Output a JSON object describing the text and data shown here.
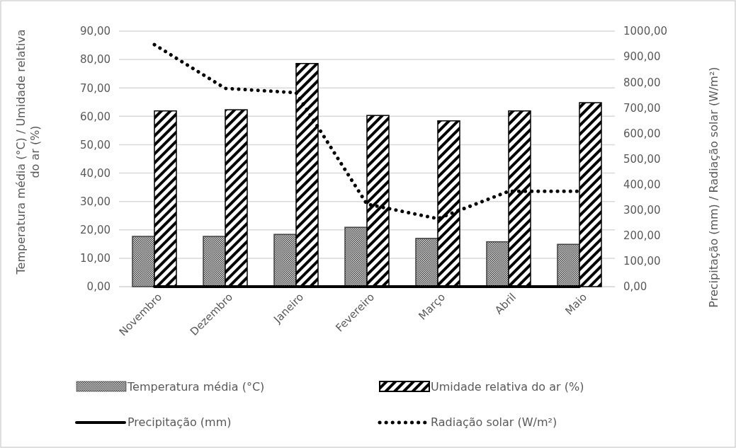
{
  "chart_data": {
    "type": "bar",
    "categories": [
      "Novembro",
      "Dezembro",
      "Janeiro",
      "Fevereiro",
      "Março",
      "Abril",
      "Maio"
    ],
    "ylabel": "Temperatura média (°C) / Umidade relativa do ar (%)",
    "y2label": "Precipitação (mm) / Radiação solar (W/m²)",
    "ylim": [
      0,
      90
    ],
    "yticks": [
      {
        "value": 0,
        "label": "0,00"
      },
      {
        "value": 10,
        "label": "10,00"
      },
      {
        "value": 20,
        "label": "20,00"
      },
      {
        "value": 30,
        "label": "30,00"
      },
      {
        "value": 40,
        "label": "40,00"
      },
      {
        "value": 50,
        "label": "50,00"
      },
      {
        "value": 60,
        "label": "60,00"
      },
      {
        "value": 70,
        "label": "70,00"
      },
      {
        "value": 80,
        "label": "80,00"
      },
      {
        "value": 90,
        "label": "90,00"
      }
    ],
    "y2lim": [
      0,
      1000
    ],
    "y2ticks": [
      {
        "value": 0,
        "label": "0,00"
      },
      {
        "value": 100,
        "label": "100,00"
      },
      {
        "value": 200,
        "label": "200,00"
      },
      {
        "value": 300,
        "label": "300,00"
      },
      {
        "value": 400,
        "label": "400,00"
      },
      {
        "value": 500,
        "label": "500,00"
      },
      {
        "value": 600,
        "label": "600,00"
      },
      {
        "value": 700,
        "label": "700,00"
      },
      {
        "value": 800,
        "label": "800,00"
      },
      {
        "value": 900,
        "label": "900,00"
      },
      {
        "value": 1000,
        "label": "1000,00"
      }
    ],
    "grid": "y",
    "legend": "bottom",
    "marker": "none",
    "series": [
      {
        "name": "Temperatura média (°C)",
        "color": "#404040",
        "values": [
          17.7,
          17.7,
          18.4,
          20.9,
          17.0,
          15.8,
          14.9
        ]
      },
      {
        "name": "Umidade relativa do ar (%)",
        "color": "#000000",
        "values": [
          61.9,
          62.3,
          78.6,
          60.3,
          58.4,
          61.9,
          64.8
        ]
      },
      {
        "name": "Precipitação (mm)",
        "type": "line",
        "axis": "y2",
        "color": "#000000",
        "line_style": "solid",
        "values": [
          0,
          0,
          0,
          0,
          0,
          0,
          0
        ]
      },
      {
        "name": "Radiação solar (W/m²)",
        "type": "line",
        "axis": "y2",
        "color": "#000000",
        "line_style": "dotted",
        "values": [
          947,
          776,
          759,
          323,
          266,
          373,
          373
        ]
      }
    ]
  }
}
